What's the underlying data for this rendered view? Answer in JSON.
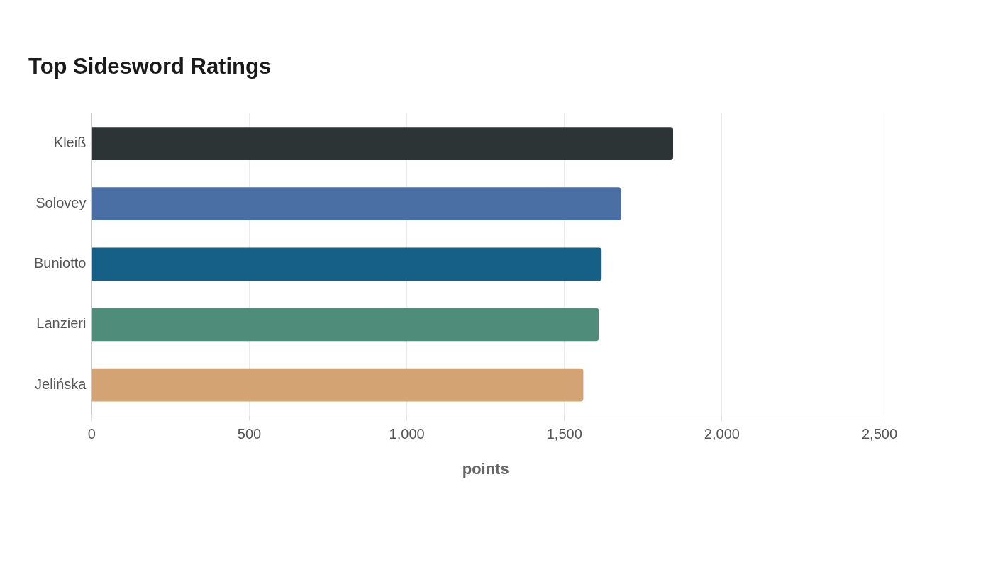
{
  "chart_data": {
    "type": "bar",
    "orientation": "horizontal",
    "title": "Top Sidesword Ratings",
    "xlabel": "points",
    "categories": [
      "Kleiß",
      "Solovey",
      "Buniotto",
      "Lanzieri",
      "Jelińska"
    ],
    "values": [
      1845,
      1680,
      1618,
      1609,
      1560
    ],
    "colors": [
      "#2d3436",
      "#4a6fa5",
      "#166088",
      "#4f8c7a",
      "#d4a373"
    ],
    "xlim": [
      0,
      2500
    ],
    "xticks": [
      0,
      500,
      {
        "value": 1000,
        "label": "1,000"
      },
      {
        "value": 1500,
        "label": "1,500"
      },
      {
        "value": 2000,
        "label": "2,000"
      },
      {
        "value": 2500,
        "label": "2,500"
      }
    ],
    "grid": "x"
  }
}
